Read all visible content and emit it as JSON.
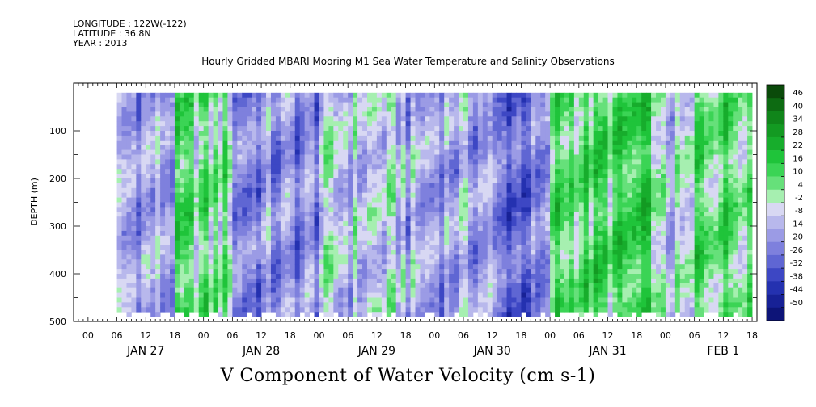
{
  "header": {
    "longitude": "LONGITUDE : 122W(-122)",
    "latitude": "LATITUDE : 36.8N",
    "year": "YEAR : 2013"
  },
  "title": "Hourly Gridded MBARI Mooring M1 Sea Water Temperature and Salinity Observations",
  "bottom_title": "V Component of Water Velocity (cm s-1)",
  "chart_data": {
    "type": "heatmap",
    "title": "Hourly Gridded MBARI Mooring M1 Sea Water Temperature and Salinity Observations",
    "xlabel": "",
    "ylabel": "DEPTH (m)",
    "colorbar_label": "V Component of Water Velocity (cm s-1)",
    "x_hour_ticks": [
      "00",
      "06",
      "12",
      "18",
      "00",
      "06",
      "12",
      "18",
      "00",
      "06",
      "12",
      "18",
      "00",
      "06",
      "12",
      "18",
      "00",
      "06",
      "12",
      "18",
      "00",
      "06",
      "12",
      "18"
    ],
    "x_day_labels": [
      "JAN 27",
      "JAN 28",
      "JAN 29",
      "JAN 30",
      "JAN 31",
      "FEB  1"
    ],
    "x_range_hours": [
      -3,
      139
    ],
    "y_ticks": [
      100,
      200,
      300,
      400,
      500
    ],
    "y_range": [
      0,
      500
    ],
    "y_inverted": true,
    "colorbar_levels": [
      48,
      46,
      40,
      34,
      28,
      22,
      16,
      10,
      4,
      -2,
      -8,
      -14,
      -20,
      -26,
      -32,
      -38,
      -44,
      -50
    ],
    "colorbar_labels": [
      "46",
      "40",
      "34",
      "28",
      "22",
      "16",
      "10",
      "4",
      "-2",
      "-8",
      "-14",
      "-20",
      "-26",
      "-32",
      "-38",
      "-44",
      "-50"
    ],
    "colorbar_colors": [
      "#0a4a0a",
      "#0d6b12",
      "#10851a",
      "#139a22",
      "#17ad2c",
      "#1fc43a",
      "#3bd455",
      "#66e07a",
      "#a6efb0",
      "#d8d8f3",
      "#b8b8ec",
      "#9b9be5",
      "#7e80dd",
      "#5f66d3",
      "#3d47c4",
      "#2431b0",
      "#172196",
      "#0d1478"
    ],
    "series_description_bands": [
      {
        "time_start_h": 6,
        "time_end_h": 18,
        "v_mean": -14
      },
      {
        "time_start_h": 18,
        "time_end_h": 30,
        "v_mean": 4
      },
      {
        "time_start_h": 30,
        "time_end_h": 48,
        "v_mean": -20
      },
      {
        "time_start_h": 48,
        "time_end_h": 66,
        "v_mean": -8
      },
      {
        "time_start_h": 66,
        "time_end_h": 84,
        "v_mean": -14
      },
      {
        "time_start_h": 84,
        "time_end_h": 96,
        "v_mean": -26
      },
      {
        "time_start_h": 96,
        "time_end_h": 118,
        "v_mean": 10
      },
      {
        "time_start_h": 118,
        "time_end_h": 126,
        "v_mean": -8
      },
      {
        "time_start_h": 126,
        "time_end_h": 138,
        "v_mean": 10
      }
    ]
  }
}
